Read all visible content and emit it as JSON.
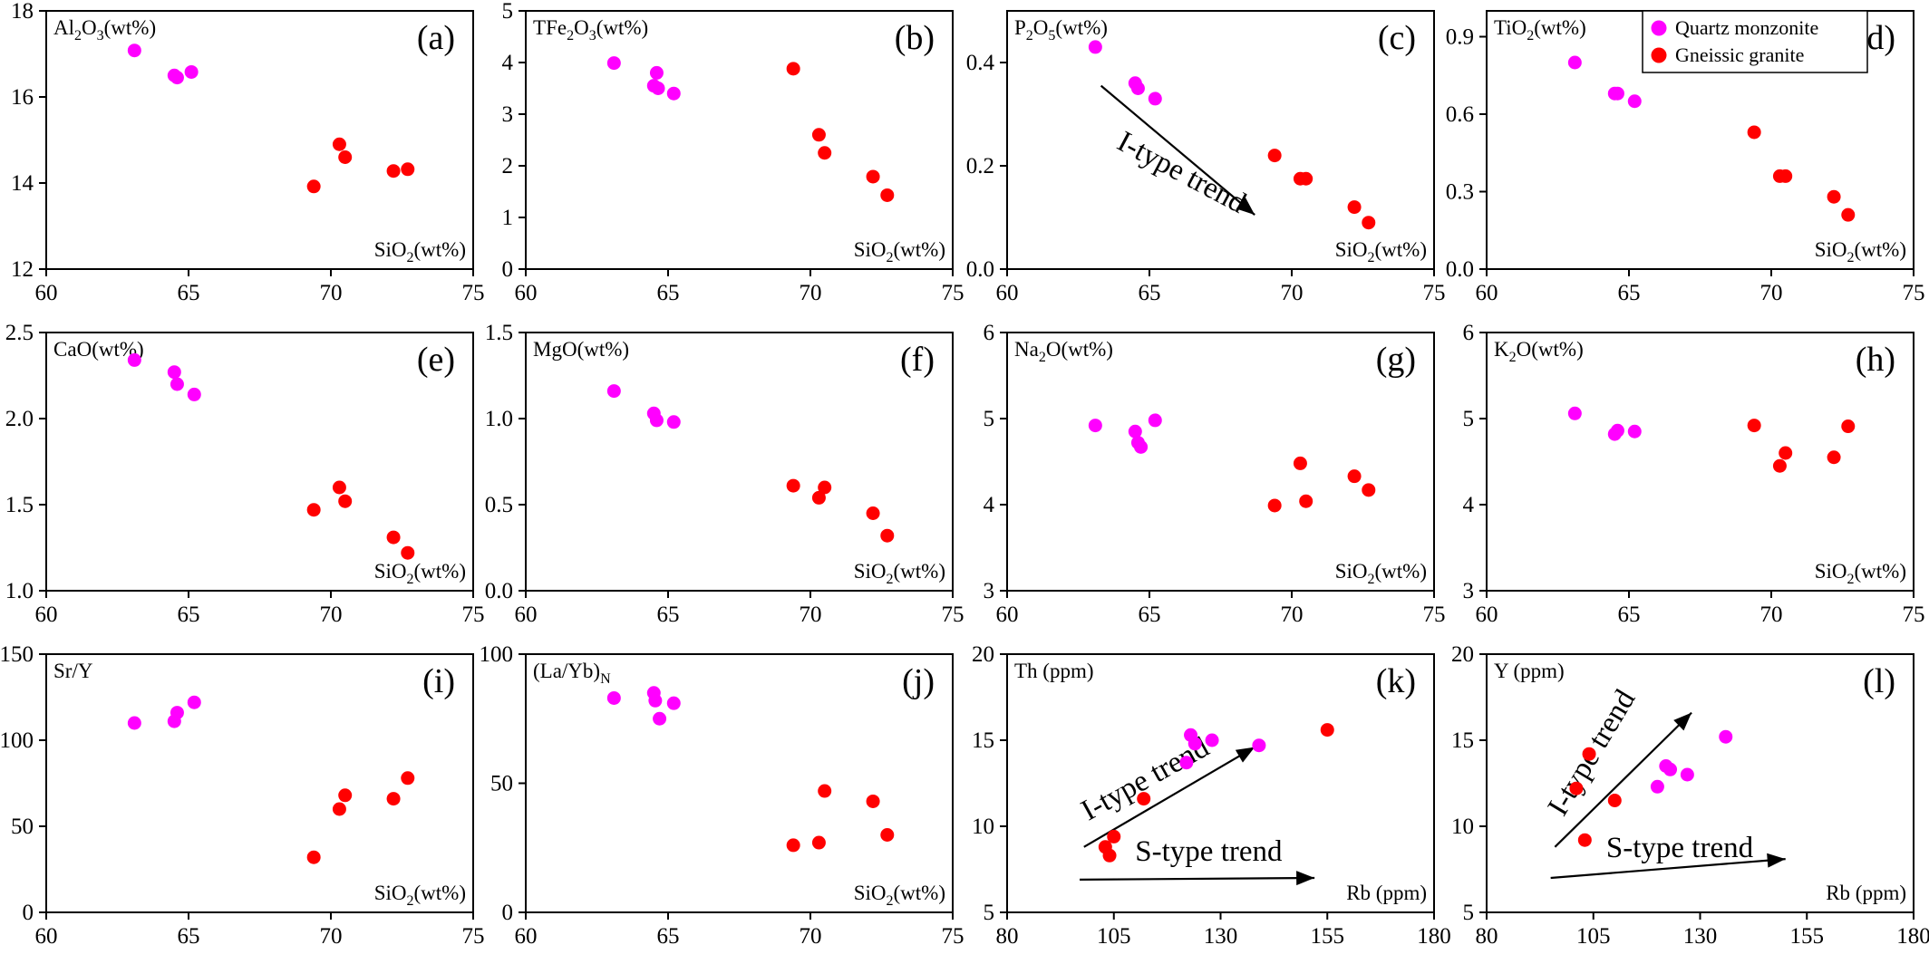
{
  "legend": [
    {
      "label": "Quartz monzonite",
      "color": "#ff00ff"
    },
    {
      "label": "Gneissic granite",
      "color": "#ff0000"
    }
  ],
  "chart_data": [
    {
      "type": "scatter",
      "panel": "(a)",
      "ylabel": "Al2O3(wt%)",
      "xlabel": "SiO2(wt%)",
      "xlim": [
        60,
        75
      ],
      "ylim": [
        12,
        18
      ],
      "xticks": [
        60,
        65,
        70,
        75
      ],
      "yticks": [
        12,
        14,
        16,
        18
      ],
      "series": [
        {
          "name": "Quartz monzonite",
          "points": [
            [
              63.1,
              17.08
            ],
            [
              64.5,
              16.5
            ],
            [
              64.6,
              16.45
            ],
            [
              65.1,
              16.58
            ]
          ]
        },
        {
          "name": "Gneissic granite",
          "points": [
            [
              69.4,
              13.92
            ],
            [
              70.3,
              14.9
            ],
            [
              70.5,
              14.6
            ],
            [
              72.2,
              14.28
            ],
            [
              72.7,
              14.32
            ]
          ]
        }
      ]
    },
    {
      "type": "scatter",
      "panel": "(b)",
      "ylabel": "TFe2O3(wt%)",
      "xlabel": "SiO2(wt%)",
      "xlim": [
        60,
        75
      ],
      "ylim": [
        0,
        5
      ],
      "xticks": [
        60,
        65,
        70,
        75
      ],
      "yticks": [
        0,
        1,
        2,
        3,
        4,
        5
      ],
      "series": [
        {
          "name": "Quartz monzonite",
          "points": [
            [
              63.1,
              3.99
            ],
            [
              64.5,
              3.55
            ],
            [
              64.6,
              3.8
            ],
            [
              64.65,
              3.5
            ],
            [
              65.2,
              3.4
            ]
          ]
        },
        {
          "name": "Gneissic granite",
          "points": [
            [
              69.4,
              3.88
            ],
            [
              70.3,
              2.6
            ],
            [
              70.5,
              2.25
            ],
            [
              72.2,
              1.79
            ],
            [
              72.7,
              1.43
            ]
          ]
        }
      ]
    },
    {
      "type": "scatter",
      "panel": "(c)",
      "ylabel": "P2O5(wt%)",
      "xlabel": "SiO2(wt%)",
      "xlim": [
        60,
        75
      ],
      "ylim": [
        0.0,
        0.5
      ],
      "xticks": [
        60,
        65,
        70,
        75
      ],
      "yticks": [
        0.0,
        0.2,
        0.4
      ],
      "annotations": [
        "I-type trend"
      ],
      "series": [
        {
          "name": "Quartz monzonite",
          "points": [
            [
              63.1,
              0.43
            ],
            [
              64.5,
              0.36
            ],
            [
              64.6,
              0.35
            ],
            [
              65.2,
              0.33
            ]
          ]
        },
        {
          "name": "Gneissic granite",
          "points": [
            [
              69.4,
              0.22
            ],
            [
              70.3,
              0.175
            ],
            [
              70.5,
              0.175
            ],
            [
              72.2,
              0.12
            ],
            [
              72.7,
              0.09
            ]
          ]
        }
      ]
    },
    {
      "type": "scatter",
      "panel": "(d)",
      "ylabel": "TiO2(wt%)",
      "xlabel": "SiO2(wt%)",
      "xlim": [
        60,
        75
      ],
      "ylim": [
        0.0,
        1.0
      ],
      "xticks": [
        60,
        65,
        70,
        75
      ],
      "yticks": [
        0.0,
        0.3,
        0.6,
        0.9
      ],
      "series": [
        {
          "name": "Quartz monzonite",
          "points": [
            [
              63.1,
              0.8
            ],
            [
              64.5,
              0.68
            ],
            [
              64.6,
              0.68
            ],
            [
              65.2,
              0.65
            ]
          ]
        },
        {
          "name": "Gneissic granite",
          "points": [
            [
              69.4,
              0.53
            ],
            [
              70.3,
              0.36
            ],
            [
              70.5,
              0.36
            ],
            [
              72.2,
              0.28
            ],
            [
              72.7,
              0.21
            ]
          ]
        }
      ]
    },
    {
      "type": "scatter",
      "panel": "(e)",
      "ylabel": "CaO(wt%)",
      "xlabel": "SiO2(wt%)",
      "xlim": [
        60,
        75
      ],
      "ylim": [
        1.0,
        2.5
      ],
      "xticks": [
        60,
        65,
        70,
        75
      ],
      "yticks": [
        1.0,
        1.5,
        2.0,
        2.5
      ],
      "series": [
        {
          "name": "Quartz monzonite",
          "points": [
            [
              63.1,
              2.34
            ],
            [
              64.5,
              2.27
            ],
            [
              64.6,
              2.2
            ],
            [
              65.2,
              2.14
            ]
          ]
        },
        {
          "name": "Gneissic granite",
          "points": [
            [
              69.4,
              1.47
            ],
            [
              70.3,
              1.6
            ],
            [
              70.5,
              1.52
            ],
            [
              72.2,
              1.31
            ],
            [
              72.7,
              1.22
            ]
          ]
        }
      ]
    },
    {
      "type": "scatter",
      "panel": "(f)",
      "ylabel": "MgO(wt%)",
      "xlabel": "SiO2(wt%)",
      "xlim": [
        60,
        75
      ],
      "ylim": [
        0.0,
        1.5
      ],
      "xticks": [
        60,
        65,
        70,
        75
      ],
      "yticks": [
        0.0,
        0.5,
        1.0,
        1.5
      ],
      "series": [
        {
          "name": "Quartz monzonite",
          "points": [
            [
              63.1,
              1.16
            ],
            [
              64.5,
              1.03
            ],
            [
              64.6,
              0.99
            ],
            [
              65.2,
              0.98
            ]
          ]
        },
        {
          "name": "Gneissic granite",
          "points": [
            [
              69.4,
              0.61
            ],
            [
              70.3,
              0.54
            ],
            [
              70.5,
              0.6
            ],
            [
              72.2,
              0.45
            ],
            [
              72.7,
              0.32
            ]
          ]
        }
      ]
    },
    {
      "type": "scatter",
      "panel": "(g)",
      "ylabel": "Na2O(wt%)",
      "xlabel": "SiO2(wt%)",
      "xlim": [
        60,
        75
      ],
      "ylim": [
        3,
        6
      ],
      "xticks": [
        60,
        65,
        70,
        75
      ],
      "yticks": [
        3,
        4,
        5,
        6
      ],
      "series": [
        {
          "name": "Quartz monzonite",
          "points": [
            [
              63.1,
              4.92
            ],
            [
              64.5,
              4.85
            ],
            [
              64.6,
              4.72
            ],
            [
              64.7,
              4.67
            ],
            [
              65.2,
              4.98
            ]
          ]
        },
        {
          "name": "Gneissic granite",
          "points": [
            [
              69.4,
              3.99
            ],
            [
              70.3,
              4.48
            ],
            [
              70.5,
              4.04
            ],
            [
              72.2,
              4.33
            ],
            [
              72.7,
              4.17
            ]
          ]
        }
      ]
    },
    {
      "type": "scatter",
      "panel": "(h)",
      "ylabel": "K2O(wt%)",
      "xlabel": "SiO2(wt%)",
      "xlim": [
        60,
        75
      ],
      "ylim": [
        3,
        6
      ],
      "xticks": [
        60,
        65,
        70,
        75
      ],
      "yticks": [
        3,
        4,
        5,
        6
      ],
      "series": [
        {
          "name": "Quartz monzonite",
          "points": [
            [
              63.1,
              5.06
            ],
            [
              64.5,
              4.82
            ],
            [
              64.6,
              4.86
            ],
            [
              65.2,
              4.85
            ]
          ]
        },
        {
          "name": "Gneissic granite",
          "points": [
            [
              69.4,
              4.92
            ],
            [
              70.3,
              4.45
            ],
            [
              70.5,
              4.6
            ],
            [
              72.2,
              4.55
            ],
            [
              72.7,
              4.91
            ]
          ]
        }
      ]
    },
    {
      "type": "scatter",
      "panel": "(i)",
      "ylabel": "Sr/Y",
      "xlabel": "SiO2(wt%)",
      "xlim": [
        60,
        75
      ],
      "ylim": [
        0,
        150
      ],
      "xticks": [
        60,
        65,
        70,
        75
      ],
      "yticks": [
        0,
        50,
        100,
        150
      ],
      "series": [
        {
          "name": "Quartz monzonite",
          "points": [
            [
              63.1,
              110
            ],
            [
              64.5,
              111
            ],
            [
              64.6,
              116
            ],
            [
              65.2,
              122
            ]
          ]
        },
        {
          "name": "Gneissic granite",
          "points": [
            [
              69.4,
              32
            ],
            [
              70.3,
              60
            ],
            [
              70.5,
              68
            ],
            [
              72.2,
              66
            ],
            [
              72.7,
              78
            ]
          ]
        }
      ]
    },
    {
      "type": "scatter",
      "panel": "(j)",
      "ylabel": "(La/Yb)N",
      "xlabel": "SiO2(wt%)",
      "xlim": [
        60,
        75
      ],
      "ylim": [
        0,
        100
      ],
      "xticks": [
        60,
        65,
        70,
        75
      ],
      "yticks": [
        0,
        50,
        100
      ],
      "series": [
        {
          "name": "Quartz monzonite",
          "points": [
            [
              63.1,
              83
            ],
            [
              64.5,
              85
            ],
            [
              64.55,
              82
            ],
            [
              64.7,
              75
            ],
            [
              65.2,
              81
            ]
          ]
        },
        {
          "name": "Gneissic granite",
          "points": [
            [
              69.4,
              26
            ],
            [
              70.3,
              27
            ],
            [
              70.5,
              47
            ],
            [
              72.2,
              43
            ],
            [
              72.7,
              30
            ]
          ]
        }
      ]
    },
    {
      "type": "scatter",
      "panel": "(k)",
      "ylabel": "Th (ppm)",
      "xlabel": "Rb (ppm)",
      "xlim": [
        80,
        180
      ],
      "ylim": [
        5,
        20
      ],
      "xticks": [
        80,
        105,
        130,
        155,
        180
      ],
      "yticks": [
        5,
        10,
        15,
        20
      ],
      "annotations": [
        "I-type trend",
        "S-type trend"
      ],
      "series": [
        {
          "name": "Quartz monzonite",
          "points": [
            [
              122,
              13.7
            ],
            [
              123,
              15.3
            ],
            [
              124,
              14.8
            ],
            [
              128,
              15.0
            ],
            [
              139,
              14.7
            ]
          ]
        },
        {
          "name": "Gneissic granite",
          "points": [
            [
              103,
              8.8
            ],
            [
              104,
              8.3
            ],
            [
              105,
              9.4
            ],
            [
              112,
              11.6
            ],
            [
              155,
              15.6
            ]
          ]
        }
      ]
    },
    {
      "type": "scatter",
      "panel": "(l)",
      "ylabel": "Y (ppm)",
      "xlabel": "Rb (ppm)",
      "xlim": [
        80,
        180
      ],
      "ylim": [
        5,
        20
      ],
      "xticks": [
        80,
        105,
        130,
        155,
        180
      ],
      "yticks": [
        5,
        10,
        15,
        20
      ],
      "annotations": [
        "I-type trend",
        "S-type trend"
      ],
      "series": [
        {
          "name": "Quartz monzonite",
          "points": [
            [
              120,
              12.3
            ],
            [
              122,
              13.5
            ],
            [
              123,
              13.3
            ],
            [
              127,
              13.0
            ],
            [
              136,
              15.2
            ]
          ]
        },
        {
          "name": "Gneissic granite",
          "points": [
            [
              101,
              12.2
            ],
            [
              103,
              9.2
            ],
            [
              104,
              14.2
            ],
            [
              110,
              11.5
            ]
          ]
        }
      ]
    }
  ]
}
